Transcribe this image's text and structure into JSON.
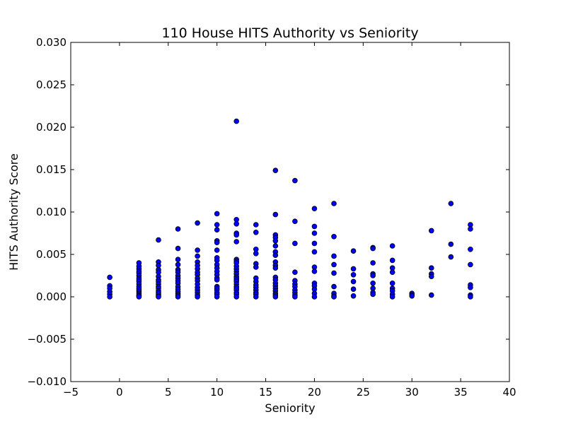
{
  "chart_data": {
    "type": "scatter",
    "title": "110 House HITS Authority vs Seniority",
    "xlabel": "Seniority",
    "ylabel": "HITS Authority Score",
    "xlim": [
      -5,
      40
    ],
    "ylim": [
      -0.01,
      0.03
    ],
    "xticks": [
      -5,
      0,
      5,
      10,
      15,
      20,
      25,
      30,
      35,
      40
    ],
    "xtick_labels": [
      "−5",
      "0",
      "5",
      "10",
      "15",
      "20",
      "25",
      "30",
      "35",
      "40"
    ],
    "yticks": [
      -0.01,
      -0.005,
      0.0,
      0.005,
      0.01,
      0.015,
      0.02,
      0.025,
      0.03
    ],
    "ytick_labels": [
      "−0.010",
      "−0.005",
      "0.000",
      "0.005",
      "0.010",
      "0.015",
      "0.020",
      "0.025",
      "0.030"
    ],
    "grid": false,
    "marker_color": "#0000ff",
    "marker_edge": "#000000",
    "points": [
      [
        -1,
        0.0023
      ],
      [
        -1,
        0.0013
      ],
      [
        -1,
        0.001
      ],
      [
        -1,
        0.0006
      ],
      [
        -1,
        0.0003
      ],
      [
        -1,
        0.0
      ],
      [
        2,
        0.004
      ],
      [
        2,
        0.0036
      ],
      [
        2,
        0.0033
      ],
      [
        2,
        0.003
      ],
      [
        2,
        0.0028
      ],
      [
        2,
        0.0025
      ],
      [
        2,
        0.0022
      ],
      [
        2,
        0.002
      ],
      [
        2,
        0.0018
      ],
      [
        2,
        0.0015
      ],
      [
        2,
        0.0012
      ],
      [
        2,
        0.001
      ],
      [
        2,
        0.0008
      ],
      [
        2,
        0.0006
      ],
      [
        2,
        0.0004
      ],
      [
        2,
        0.0002
      ],
      [
        2,
        0.0001
      ],
      [
        2,
        0.0
      ],
      [
        4,
        0.0067
      ],
      [
        4,
        0.0041
      ],
      [
        4,
        0.0037
      ],
      [
        4,
        0.0032
      ],
      [
        4,
        0.0029
      ],
      [
        4,
        0.0024
      ],
      [
        4,
        0.002
      ],
      [
        4,
        0.0018
      ],
      [
        4,
        0.0015
      ],
      [
        4,
        0.0012
      ],
      [
        4,
        0.001
      ],
      [
        4,
        0.0007
      ],
      [
        4,
        0.0005
      ],
      [
        4,
        0.0003
      ],
      [
        4,
        0.0001
      ],
      [
        4,
        0.0
      ],
      [
        6,
        0.008
      ],
      [
        6,
        0.0057
      ],
      [
        6,
        0.0044
      ],
      [
        6,
        0.0038
      ],
      [
        6,
        0.0032
      ],
      [
        6,
        0.0029
      ],
      [
        6,
        0.0025
      ],
      [
        6,
        0.0022
      ],
      [
        6,
        0.0019
      ],
      [
        6,
        0.0016
      ],
      [
        6,
        0.0012
      ],
      [
        6,
        0.0009
      ],
      [
        6,
        0.0006
      ],
      [
        6,
        0.0004
      ],
      [
        6,
        0.0002
      ],
      [
        6,
        0.0
      ],
      [
        8,
        0.0087
      ],
      [
        8,
        0.0055
      ],
      [
        8,
        0.0048
      ],
      [
        8,
        0.0041
      ],
      [
        8,
        0.0037
      ],
      [
        8,
        0.0033
      ],
      [
        8,
        0.0029
      ],
      [
        8,
        0.0026
      ],
      [
        8,
        0.0022
      ],
      [
        8,
        0.0019
      ],
      [
        8,
        0.0015
      ],
      [
        8,
        0.0011
      ],
      [
        8,
        0.0008
      ],
      [
        8,
        0.0005
      ],
      [
        8,
        0.0002
      ],
      [
        8,
        0.0
      ],
      [
        10,
        0.0098
      ],
      [
        10,
        0.0085
      ],
      [
        10,
        0.0079
      ],
      [
        10,
        0.0066
      ],
      [
        10,
        0.0064
      ],
      [
        10,
        0.0055
      ],
      [
        10,
        0.0046
      ],
      [
        10,
        0.0043
      ],
      [
        10,
        0.0038
      ],
      [
        10,
        0.0034
      ],
      [
        10,
        0.003
      ],
      [
        10,
        0.0026
      ],
      [
        10,
        0.0022
      ],
      [
        10,
        0.002
      ],
      [
        10,
        0.0012
      ],
      [
        10,
        0.001
      ],
      [
        10,
        0.0008
      ],
      [
        10,
        0.0005
      ],
      [
        10,
        0.0003
      ],
      [
        10,
        0.0
      ],
      [
        12,
        0.0207
      ],
      [
        12,
        0.0091
      ],
      [
        12,
        0.0086
      ],
      [
        12,
        0.0075
      ],
      [
        12,
        0.0073
      ],
      [
        12,
        0.0065
      ],
      [
        12,
        0.0044
      ],
      [
        12,
        0.0042
      ],
      [
        12,
        0.004
      ],
      [
        12,
        0.0036
      ],
      [
        12,
        0.0033
      ],
      [
        12,
        0.003
      ],
      [
        12,
        0.0027
      ],
      [
        12,
        0.0024
      ],
      [
        12,
        0.0022
      ],
      [
        12,
        0.002
      ],
      [
        12,
        0.0018
      ],
      [
        12,
        0.0015
      ],
      [
        12,
        0.0012
      ],
      [
        12,
        0.001
      ],
      [
        12,
        0.0008
      ],
      [
        12,
        0.0005
      ],
      [
        12,
        0.0003
      ],
      [
        12,
        0.0
      ],
      [
        14,
        0.0085
      ],
      [
        14,
        0.0076
      ],
      [
        14,
        0.0056
      ],
      [
        14,
        0.0051
      ],
      [
        14,
        0.0039
      ],
      [
        14,
        0.0035
      ],
      [
        14,
        0.0022
      ],
      [
        14,
        0.0018
      ],
      [
        14,
        0.0014
      ],
      [
        14,
        0.0011
      ],
      [
        14,
        0.0008
      ],
      [
        14,
        0.0005
      ],
      [
        14,
        0.0003
      ],
      [
        14,
        0.0
      ],
      [
        16,
        0.0149
      ],
      [
        16,
        0.0097
      ],
      [
        16,
        0.0073
      ],
      [
        16,
        0.007
      ],
      [
        16,
        0.0066
      ],
      [
        16,
        0.006
      ],
      [
        16,
        0.0053
      ],
      [
        16,
        0.0049
      ],
      [
        16,
        0.0041
      ],
      [
        16,
        0.0037
      ],
      [
        16,
        0.0034
      ],
      [
        16,
        0.0023
      ],
      [
        16,
        0.002
      ],
      [
        16,
        0.0016
      ],
      [
        16,
        0.0013
      ],
      [
        16,
        0.001
      ],
      [
        16,
        0.0007
      ],
      [
        16,
        0.0004
      ],
      [
        16,
        0.0002
      ],
      [
        16,
        0.0
      ],
      [
        18,
        0.0137
      ],
      [
        18,
        0.0089
      ],
      [
        18,
        0.0063
      ],
      [
        18,
        0.0029
      ],
      [
        18,
        0.0019
      ],
      [
        18,
        0.0015
      ],
      [
        18,
        0.0012
      ],
      [
        18,
        0.0008
      ],
      [
        18,
        0.0005
      ],
      [
        18,
        0.0002
      ],
      [
        18,
        0.0
      ],
      [
        20,
        0.0104
      ],
      [
        20,
        0.0083
      ],
      [
        20,
        0.0075
      ],
      [
        20,
        0.0063
      ],
      [
        20,
        0.0053
      ],
      [
        20,
        0.0035
      ],
      [
        20,
        0.003
      ],
      [
        20,
        0.0016
      ],
      [
        20,
        0.0013
      ],
      [
        20,
        0.0009
      ],
      [
        20,
        0.0004
      ],
      [
        20,
        0.0
      ],
      [
        22,
        0.011
      ],
      [
        22,
        0.0071
      ],
      [
        22,
        0.0048
      ],
      [
        22,
        0.0038
      ],
      [
        22,
        0.0028
      ],
      [
        22,
        0.0012
      ],
      [
        22,
        0.0004
      ],
      [
        22,
        0.0001
      ],
      [
        22,
        0.0
      ],
      [
        24,
        0.0054
      ],
      [
        24,
        0.0033
      ],
      [
        24,
        0.0026
      ],
      [
        24,
        0.0018
      ],
      [
        24,
        0.0009
      ],
      [
        24,
        0.0001
      ],
      [
        26,
        0.0058
      ],
      [
        26,
        0.0057
      ],
      [
        26,
        0.004
      ],
      [
        26,
        0.0027
      ],
      [
        26,
        0.0025
      ],
      [
        26,
        0.0016
      ],
      [
        26,
        0.001
      ],
      [
        26,
        0.0005
      ],
      [
        26,
        0.0003
      ],
      [
        28,
        0.006
      ],
      [
        28,
        0.0043
      ],
      [
        28,
        0.0034
      ],
      [
        28,
        0.0029
      ],
      [
        28,
        0.0016
      ],
      [
        28,
        0.001
      ],
      [
        28,
        0.0007
      ],
      [
        28,
        0.0003
      ],
      [
        28,
        0.0
      ],
      [
        30,
        0.0004
      ],
      [
        30,
        0.0002
      ],
      [
        30,
        0.0001
      ],
      [
        32,
        0.0078
      ],
      [
        32,
        0.0034
      ],
      [
        32,
        0.0027
      ],
      [
        32,
        0.0024
      ],
      [
        32,
        0.0002
      ],
      [
        34,
        0.011
      ],
      [
        34,
        0.0062
      ],
      [
        34,
        0.0047
      ],
      [
        36,
        0.0085
      ],
      [
        36,
        0.008
      ],
      [
        36,
        0.0056
      ],
      [
        36,
        0.0038
      ],
      [
        36,
        0.0014
      ],
      [
        36,
        0.0011
      ],
      [
        36,
        0.0002
      ],
      [
        36,
        0.0
      ]
    ]
  }
}
